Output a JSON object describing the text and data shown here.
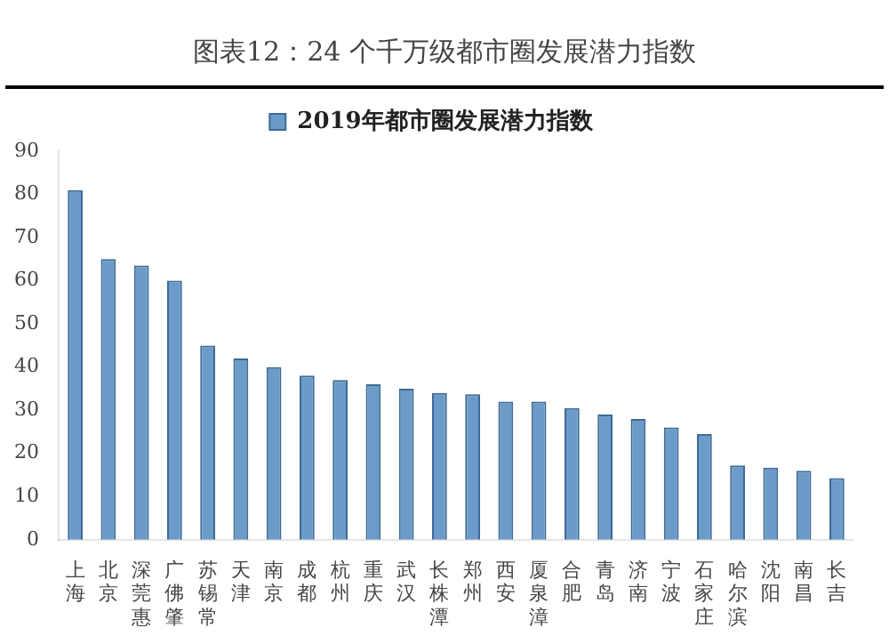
{
  "chart_data": {
    "type": "bar",
    "title": "图表12：24 个千万级都市圈发展潜力指数",
    "categories": [
      "上海",
      "北京",
      "深莞惠",
      "广佛肇",
      "苏锡常",
      "天津",
      "南京",
      "成都",
      "杭州",
      "重庆",
      "武汉",
      "长株潭",
      "郑州",
      "西安",
      "厦泉漳",
      "合肥",
      "青岛",
      "济南",
      "宁波",
      "石家庄",
      "哈尔滨",
      "沈阳",
      "南昌",
      "长吉"
    ],
    "series": [
      {
        "name": "2019年都市圈发展潜力指数",
        "color": "#6b9bc8",
        "values": [
          81,
          65,
          63.5,
          60,
          45,
          42,
          40,
          38,
          37,
          36,
          35,
          34,
          33.7,
          32,
          32,
          30.5,
          29,
          28,
          26,
          24.5,
          17.2,
          16.7,
          16,
          14.3
        ]
      }
    ],
    "ylim": [
      0,
      90
    ],
    "yticks": [
      0,
      10,
      20,
      30,
      40,
      50,
      60,
      70,
      80,
      90
    ],
    "grid": false,
    "legend": "top"
  }
}
